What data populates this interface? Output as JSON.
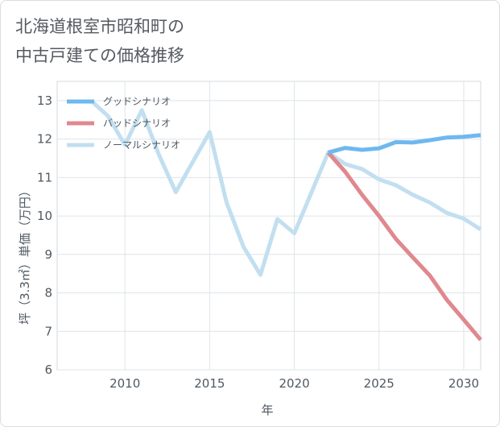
{
  "title_line1": "北海道根室市昭和町の",
  "title_line2": "中古戸建ての価格推移",
  "chart_data": {
    "type": "line",
    "xlabel": "年",
    "ylabel": "坪（3.3㎡）単価（万円）",
    "xlim": [
      2006,
      2031
    ],
    "ylim": [
      6,
      13.5
    ],
    "xticks": [
      2010,
      2015,
      2020,
      2025,
      2030
    ],
    "yticks": [
      6,
      7,
      8,
      9,
      10,
      11,
      12,
      13
    ],
    "grid": true,
    "legend_position": "top-left",
    "series": [
      {
        "name": "グッドシナリオ",
        "color": "#6fb8ef",
        "x": [
          2022,
          2023,
          2024,
          2025,
          2026,
          2027,
          2028,
          2029,
          2030,
          2031
        ],
        "y": [
          11.65,
          11.77,
          11.72,
          11.76,
          11.92,
          11.91,
          11.97,
          12.04,
          12.06,
          12.1
        ]
      },
      {
        "name": "バッドシナリオ",
        "color": "#e0888f",
        "x": [
          2022,
          2023,
          2024,
          2025,
          2026,
          2027,
          2028,
          2029,
          2030,
          2031
        ],
        "y": [
          11.65,
          11.15,
          10.55,
          10.0,
          9.4,
          8.92,
          8.45,
          7.82,
          7.3,
          6.78
        ]
      },
      {
        "name": "ノーマルシナリオ",
        "color": "#c2dff0",
        "x": [
          2008,
          2009,
          2010,
          2011,
          2012,
          2013,
          2014,
          2015,
          2016,
          2017,
          2018,
          2019,
          2020,
          2021,
          2022,
          2023,
          2024,
          2025,
          2026,
          2027,
          2028,
          2029,
          2030,
          2031
        ],
        "y": [
          13.0,
          12.6,
          11.85,
          12.75,
          11.6,
          10.62,
          11.4,
          12.18,
          10.35,
          9.2,
          8.47,
          9.92,
          9.55,
          10.6,
          11.65,
          11.35,
          11.22,
          10.95,
          10.8,
          10.55,
          10.35,
          10.08,
          9.93,
          9.65
        ]
      }
    ]
  }
}
